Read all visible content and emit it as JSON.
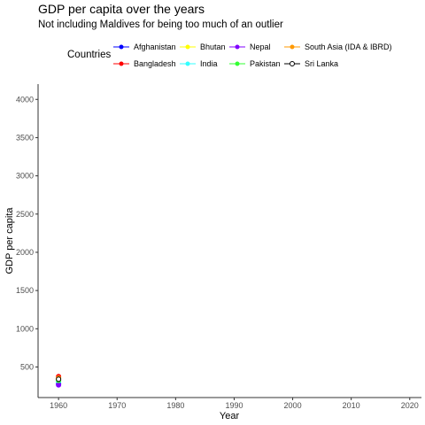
{
  "title": "GDP per capita over the years",
  "subtitle": "Not including Maldives for being too much of an outlier",
  "chart_data": {
    "type": "line",
    "xlabel": "Year",
    "ylabel": "GDP per capita",
    "xlim": [
      1956.5,
      2022
    ],
    "ylim": [
      100,
      4200
    ],
    "x_ticks": [
      1960,
      1970,
      1980,
      1990,
      2000,
      2010,
      2020
    ],
    "y_ticks": [
      500,
      1000,
      1500,
      2000,
      2500,
      3000,
      3500,
      4000
    ],
    "grid": false,
    "legend_title": "Countries",
    "legend_position": "top",
    "series": [
      {
        "name": "Afghanistan",
        "color": "#0000ff",
        "x": [
          1960
        ],
        "y": [
          280
        ]
      },
      {
        "name": "Bangladesh",
        "color": "#ff0000",
        "x": [
          1960
        ],
        "y": [
          375
        ]
      },
      {
        "name": "Bhutan",
        "color": "#ffff00",
        "x": [
          1960
        ],
        "y": [
          345
        ]
      },
      {
        "name": "India",
        "color": "#33ffff",
        "x": [
          1960
        ],
        "y": [
          310
        ]
      },
      {
        "name": "Nepal",
        "color": "#8000ff",
        "x": [
          1960
        ],
        "y": [
          265
        ]
      },
      {
        "name": "Pakistan",
        "color": "#33ff33",
        "x": [
          1960
        ],
        "y": [
          325
        ]
      },
      {
        "name": "South Asia (IDA & IBRD)",
        "color": "#ff9900",
        "x": [
          1960
        ],
        "y": [
          355
        ]
      },
      {
        "name": "Sri Lanka",
        "color": "#000000",
        "x": [
          1960
        ],
        "y": [
          340
        ]
      }
    ]
  }
}
